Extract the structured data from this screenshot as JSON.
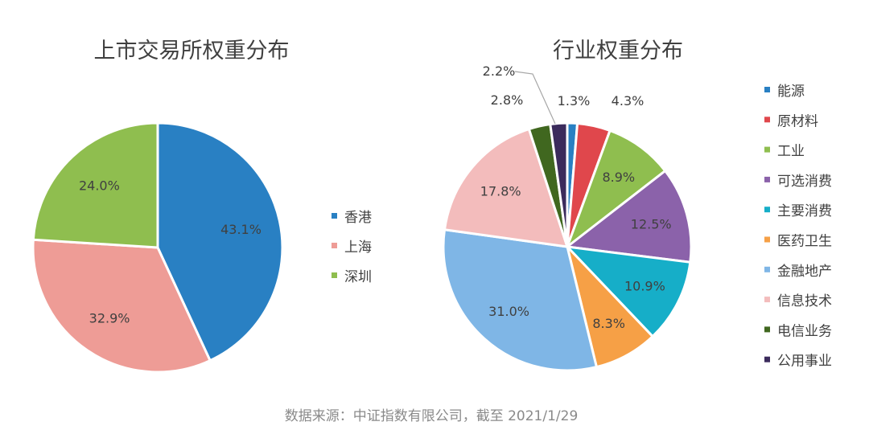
{
  "chart_data": [
    {
      "type": "pie",
      "title": "上市交易所权重分布",
      "legend_position": "right",
      "slices": [
        {
          "label": "香港",
          "value": 43.1,
          "value_label": "43.1%",
          "color": "#2980c3"
        },
        {
          "label": "上海",
          "value": 32.9,
          "value_label": "32.9%",
          "color": "#ee9c96"
        },
        {
          "label": "深圳",
          "value": 24.0,
          "value_label": "24.0%",
          "color": "#8fbe4f"
        }
      ]
    },
    {
      "type": "pie",
      "title": "行业权重分布",
      "legend_position": "right",
      "slices": [
        {
          "label": "能源",
          "value": 1.3,
          "value_label": "1.3%",
          "color": "#2980c3"
        },
        {
          "label": "原材料",
          "value": 4.3,
          "value_label": "4.3%",
          "color": "#e0474c"
        },
        {
          "label": "工业",
          "value": 8.9,
          "value_label": "8.9%",
          "color": "#8fbe4f"
        },
        {
          "label": "可选消费",
          "value": 12.5,
          "value_label": "12.5%",
          "color": "#8b62aa"
        },
        {
          "label": "主要消费",
          "value": 10.9,
          "value_label": "10.9%",
          "color": "#16aec8"
        },
        {
          "label": "医药卫生",
          "value": 8.3,
          "value_label": "8.3%",
          "color": "#f6a046"
        },
        {
          "label": "金融地产",
          "value": 31.0,
          "value_label": "31.0%",
          "color": "#7fb6e6"
        },
        {
          "label": "信息技术",
          "value": 17.8,
          "value_label": "17.8%",
          "color": "#f3bcbc"
        },
        {
          "label": "电信业务",
          "value": 2.8,
          "value_label": "2.8%",
          "color": "#40671f"
        },
        {
          "label": "公用事业",
          "value": 2.2,
          "value_label": "2.2%",
          "color": "#3b2b5c"
        }
      ]
    }
  ],
  "footer": {
    "source": "数据来源：中证指数有限公司，截至 2021/1/29"
  }
}
